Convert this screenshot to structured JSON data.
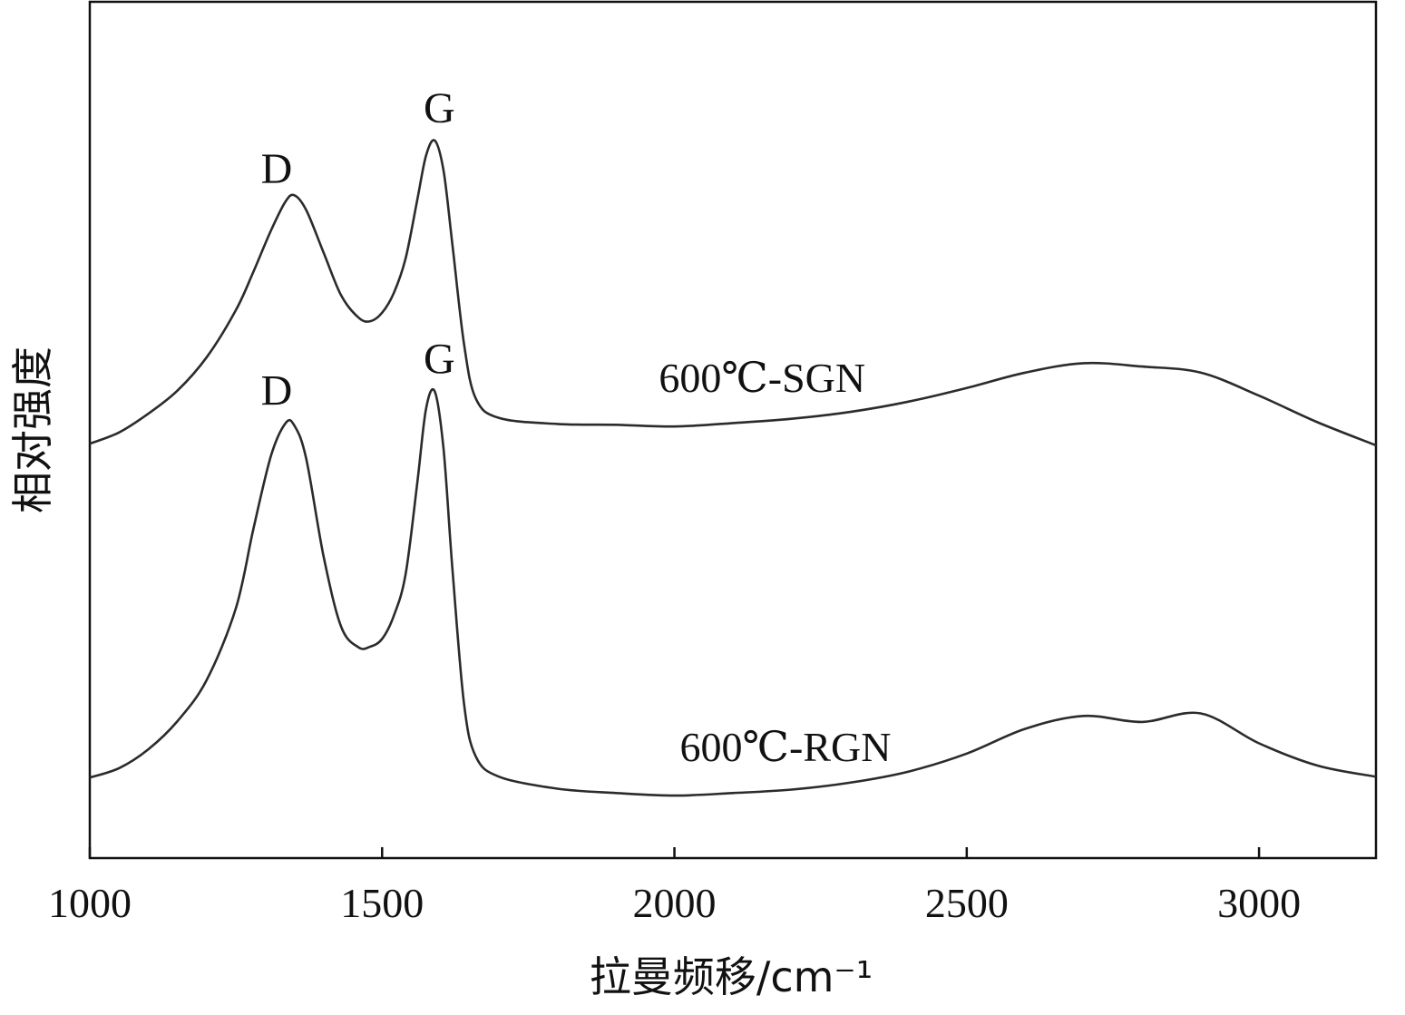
{
  "chart_data": {
    "type": "line",
    "xlabel": "拉曼频移/cm⁻¹",
    "ylabel": "相对强度",
    "xlim": [
      1000,
      3200
    ],
    "ylim": [
      0,
      1
    ],
    "xticks": [
      1000,
      1500,
      2000,
      2500,
      3000
    ],
    "yticks": [],
    "grid": false,
    "legend": "none",
    "line_color": "#2b2b2b",
    "series": [
      {
        "name": "600℃-SGN",
        "x": [
          1000,
          1050,
          1100,
          1150,
          1200,
          1250,
          1280,
          1310,
          1335,
          1350,
          1370,
          1400,
          1430,
          1460,
          1480,
          1500,
          1520,
          1540,
          1560,
          1575,
          1590,
          1605,
          1620,
          1640,
          1660,
          1700,
          1800,
          1900,
          2000,
          2100,
          2200,
          2300,
          2400,
          2500,
          2600,
          2700,
          2800,
          2900,
          3000,
          3100,
          3200
        ],
        "values": [
          0.484,
          0.497,
          0.519,
          0.546,
          0.585,
          0.64,
          0.685,
          0.733,
          0.767,
          0.774,
          0.757,
          0.707,
          0.657,
          0.631,
          0.627,
          0.637,
          0.66,
          0.7,
          0.768,
          0.82,
          0.838,
          0.803,
          0.718,
          0.601,
          0.537,
          0.514,
          0.507,
          0.506,
          0.504,
          0.508,
          0.513,
          0.521,
          0.533,
          0.549,
          0.567,
          0.578,
          0.574,
          0.567,
          0.54,
          0.509,
          0.482
        ],
        "labels": [
          {
            "text": "D",
            "x": 1335
          },
          {
            "text": "G",
            "x": 1590
          }
        ]
      },
      {
        "name": "600℃-RGN",
        "x": [
          1000,
          1050,
          1100,
          1150,
          1200,
          1250,
          1280,
          1310,
          1335,
          1350,
          1370,
          1400,
          1430,
          1460,
          1480,
          1500,
          1520,
          1540,
          1560,
          1575,
          1590,
          1605,
          1620,
          1640,
          1660,
          1700,
          1800,
          1900,
          2000,
          2100,
          2200,
          2300,
          2400,
          2500,
          2600,
          2700,
          2800,
          2900,
          3000,
          3100,
          3200
        ],
        "values": [
          0.094,
          0.105,
          0.127,
          0.16,
          0.208,
          0.292,
          0.385,
          0.47,
          0.508,
          0.505,
          0.467,
          0.352,
          0.27,
          0.246,
          0.247,
          0.256,
          0.283,
          0.331,
          0.437,
          0.524,
          0.545,
          0.478,
          0.34,
          0.181,
          0.119,
          0.095,
          0.081,
          0.076,
          0.073,
          0.076,
          0.08,
          0.088,
          0.101,
          0.122,
          0.151,
          0.166,
          0.159,
          0.169,
          0.134,
          0.108,
          0.095
        ],
        "labels": [
          {
            "text": "D",
            "x": 1335
          },
          {
            "text": "G",
            "x": 1590
          }
        ]
      }
    ]
  }
}
